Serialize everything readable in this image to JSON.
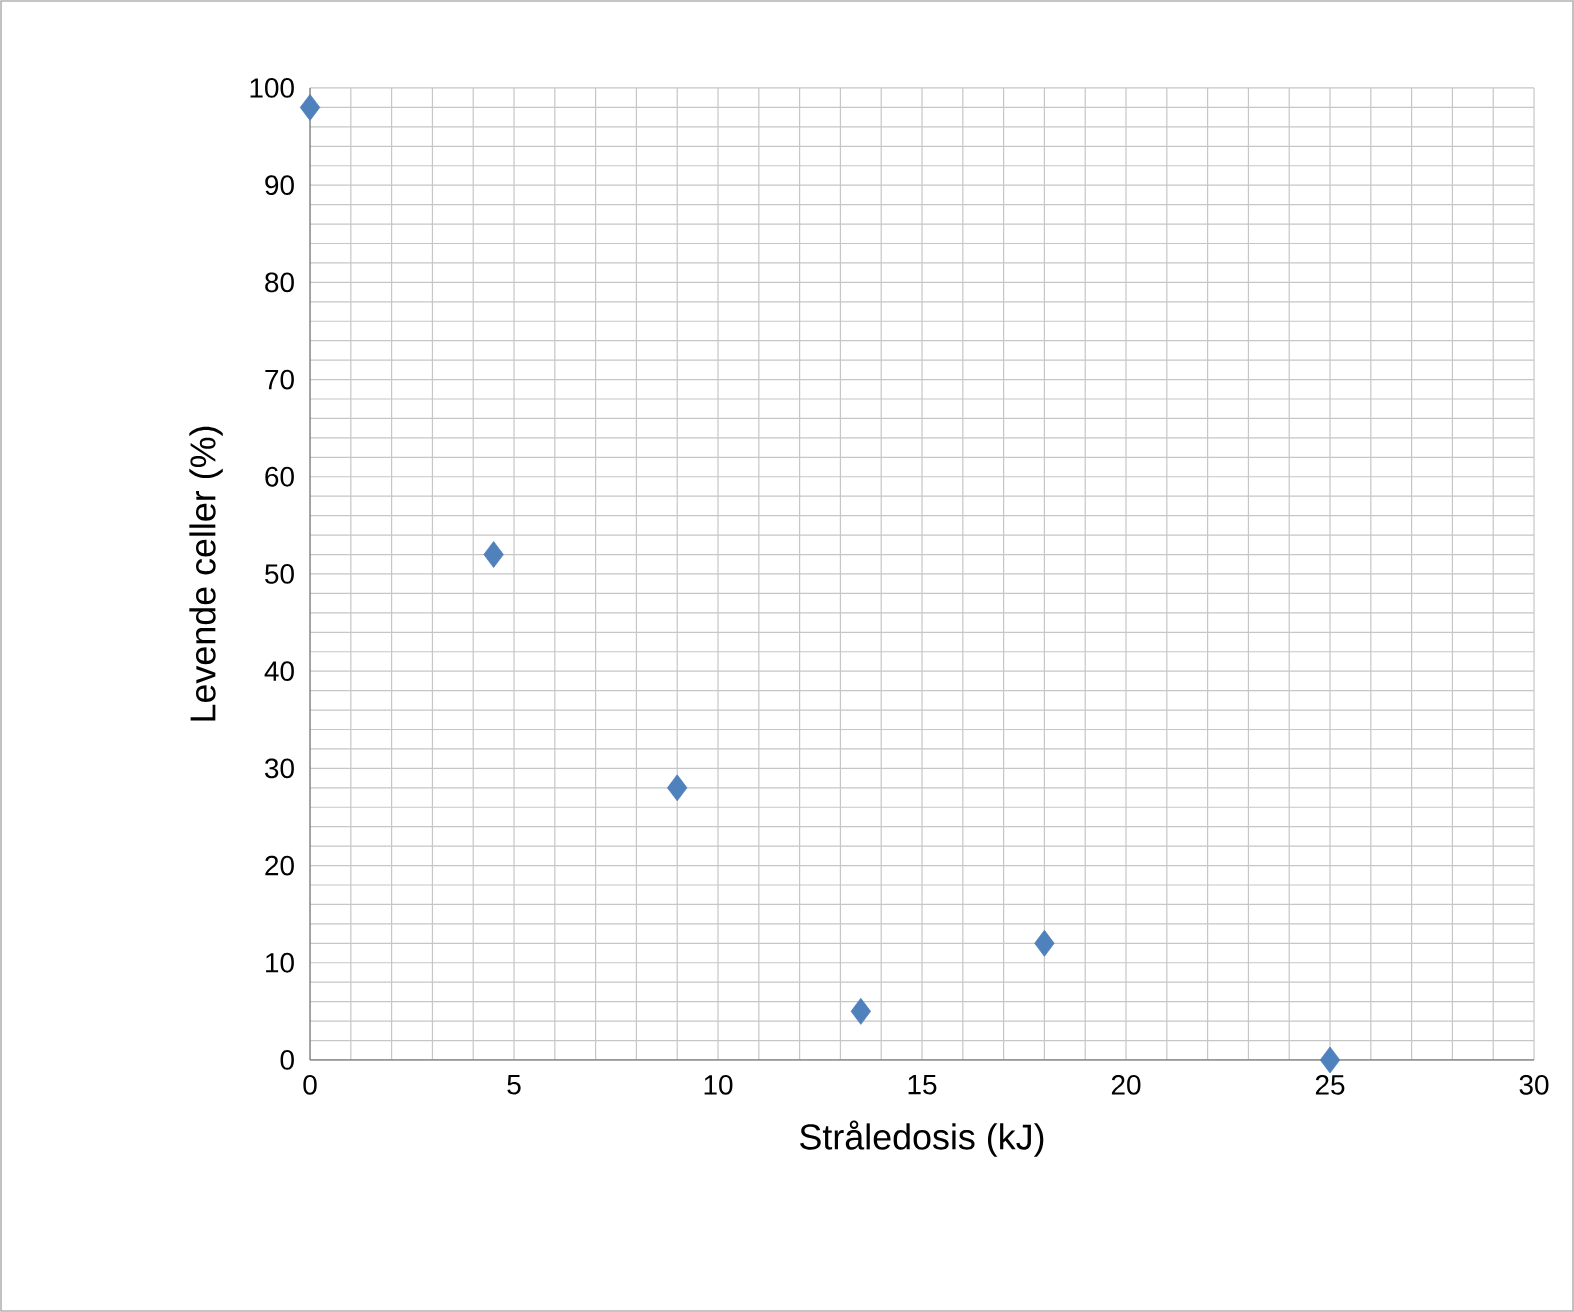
{
  "chart_data": {
    "type": "scatter",
    "xlabel": "Stråledosis (kJ)",
    "ylabel": "Levende celler (%)",
    "x": [
      0,
      4.5,
      9,
      13.5,
      18,
      25
    ],
    "values": [
      98,
      52,
      28,
      5,
      12,
      0
    ],
    "color": "#4f81bd",
    "marker": "diamond",
    "grid": true,
    "xlim": [
      0,
      30
    ],
    "ylim": [
      0,
      100
    ],
    "xticks": [
      0,
      5,
      10,
      15,
      20,
      25,
      30
    ],
    "yticks": [
      0,
      10,
      20,
      30,
      40,
      50,
      60,
      70,
      80,
      90,
      100
    ]
  }
}
